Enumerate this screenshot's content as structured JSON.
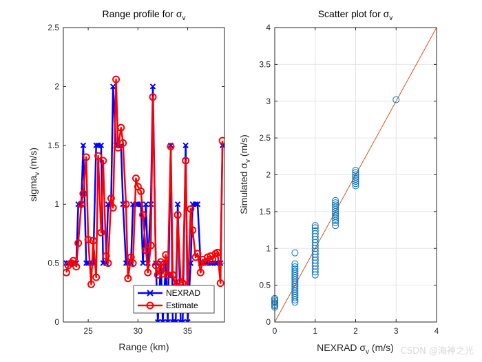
{
  "watermark": "CSDN @海神之光",
  "chart_data": [
    {
      "type": "line",
      "title": "Range profile for σ",
      "title_sub": "v",
      "xlabel": "Range (km)",
      "ylabel": "sigma",
      "ylabel_sub": "v",
      "ylabel_unit": " (m/s)",
      "xlim": [
        22.5,
        38.7
      ],
      "ylim": [
        0,
        2.5
      ],
      "xticks": [
        25,
        30,
        35
      ],
      "yticks": [
        0,
        0.5,
        1,
        1.5,
        2,
        2.5
      ],
      "grid": false,
      "legend_position": "bottom-right",
      "x": [
        22.8,
        23.0,
        23.3,
        23.5,
        23.8,
        24.0,
        24.3,
        24.5,
        24.8,
        25.0,
        25.3,
        25.5,
        25.8,
        26.0,
        26.3,
        26.5,
        26.8,
        27.0,
        27.3,
        27.5,
        27.8,
        28.0,
        28.3,
        28.5,
        28.8,
        29.0,
        29.3,
        29.5,
        29.8,
        30.0,
        30.3,
        30.5,
        30.8,
        31.0,
        31.3,
        31.5,
        31.8,
        32.0,
        32.3,
        32.5,
        32.8,
        33.0,
        33.3,
        33.5,
        33.8,
        34.0,
        34.3,
        34.5,
        34.8,
        35.0,
        35.3,
        35.5,
        35.8,
        36.0,
        36.3,
        36.5,
        36.8,
        37.0,
        37.3,
        37.5,
        37.8,
        38.0,
        38.3,
        38.5
      ],
      "series": [
        {
          "name": "NEXRAD",
          "color": "#0000ff",
          "marker": "x",
          "values": [
            0.5,
            0.5,
            0.5,
            0.5,
            0.5,
            1.0,
            1.0,
            1.5,
            0.5,
            0.5,
            0.5,
            0.5,
            1.5,
            1.5,
            1.5,
            0.5,
            0.5,
            1.0,
            1.0,
            2.0,
            1.5,
            1.5,
            1.5,
            1.0,
            0.5,
            0.5,
            0.5,
            1.0,
            1.0,
            1.0,
            1.0,
            0.5,
            1.0,
            0.5,
            1.0,
            2.0,
            0.5,
            0.0,
            0.5,
            0.0,
            0.5,
            0.0,
            1.5,
            0.0,
            0.0,
            1.0,
            0.0,
            0.0,
            1.5,
            0.0,
            0.5,
            1.0,
            1.0,
            1.0,
            0.5,
            0.5,
            0.5,
            0.5,
            0.5,
            0.5,
            0.5,
            0.5,
            0.5,
            1.5
          ]
        },
        {
          "name": "Estimate",
          "color": "#ff0000",
          "marker": "o",
          "values": [
            0.42,
            0.48,
            0.5,
            0.52,
            0.47,
            0.67,
            1.0,
            1.09,
            1.4,
            0.7,
            0.32,
            0.69,
            0.38,
            1.41,
            0.76,
            1.37,
            0.56,
            0.5,
            1.05,
            0.97,
            2.06,
            1.48,
            1.65,
            1.52,
            1.0,
            0.37,
            0.55,
            0.5,
            1.22,
            1.15,
            1.11,
            0.91,
            0.61,
            0.42,
            0.65,
            1.91,
            0.48,
            0.4,
            0.51,
            0.41,
            0.57,
            0.4,
            1.49,
            0.4,
            0.3,
            0.91,
            0.34,
            0.33,
            1.37,
            0.24,
            0.96,
            0.78,
            0.55,
            0.58,
            0.42,
            0.53,
            0.51,
            0.55,
            0.56,
            0.53,
            0.58,
            0.59,
            0.33,
            1.54
          ]
        }
      ]
    },
    {
      "type": "scatter",
      "title": "Scatter plot for σ",
      "title_sub": "v",
      "xlabel": "NEXRAD σ",
      "xlabel_sub": "v",
      "xlabel_unit": " (m/s)",
      "ylabel": "Simulated σ",
      "ylabel_sub": "v",
      "ylabel_unit": " (m/s)",
      "xlim": [
        0,
        4
      ],
      "ylim": [
        0,
        4
      ],
      "xticks": [
        0,
        1,
        2,
        3,
        4
      ],
      "yticks": [
        0,
        0.5,
        1,
        1.5,
        2,
        2.5,
        3,
        3.5,
        4
      ],
      "grid": true,
      "marker_color": "#0072bd",
      "reference_line": {
        "from": [
          0,
          0
        ],
        "to": [
          4,
          4
        ],
        "color": "#d95319"
      },
      "points": [
        [
          0,
          0.2
        ],
        [
          0,
          0.22
        ],
        [
          0,
          0.24
        ],
        [
          0,
          0.26
        ],
        [
          0,
          0.28
        ],
        [
          0,
          0.3
        ],
        [
          0,
          0.32
        ],
        [
          0.5,
          0.27
        ],
        [
          0.5,
          0.3
        ],
        [
          0.5,
          0.33
        ],
        [
          0.5,
          0.36
        ],
        [
          0.5,
          0.39
        ],
        [
          0.5,
          0.42
        ],
        [
          0.5,
          0.45
        ],
        [
          0.5,
          0.48
        ],
        [
          0.5,
          0.51
        ],
        [
          0.5,
          0.54
        ],
        [
          0.5,
          0.57
        ],
        [
          0.5,
          0.6
        ],
        [
          0.5,
          0.63
        ],
        [
          0.5,
          0.66
        ],
        [
          0.5,
          0.69
        ],
        [
          0.5,
          0.72
        ],
        [
          0.5,
          0.75
        ],
        [
          0.5,
          0.79
        ],
        [
          0.5,
          0.94
        ],
        [
          1,
          0.64
        ],
        [
          1,
          0.68
        ],
        [
          1,
          0.72
        ],
        [
          1,
          0.76
        ],
        [
          1,
          0.8
        ],
        [
          1,
          0.84
        ],
        [
          1,
          0.88
        ],
        [
          1,
          0.92
        ],
        [
          1,
          0.96
        ],
        [
          1,
          1.0
        ],
        [
          1,
          1.04
        ],
        [
          1,
          1.08
        ],
        [
          1,
          1.12
        ],
        [
          1,
          1.16
        ],
        [
          1,
          1.2
        ],
        [
          1,
          1.24
        ],
        [
          1,
          1.28
        ],
        [
          1,
          1.31
        ],
        [
          1.5,
          1.31
        ],
        [
          1.5,
          1.35
        ],
        [
          1.5,
          1.38
        ],
        [
          1.5,
          1.41
        ],
        [
          1.5,
          1.44
        ],
        [
          1.5,
          1.47
        ],
        [
          1.5,
          1.5
        ],
        [
          1.5,
          1.53
        ],
        [
          1.5,
          1.56
        ],
        [
          1.5,
          1.59
        ],
        [
          1.5,
          1.62
        ],
        [
          1.5,
          1.65
        ],
        [
          2,
          1.85
        ],
        [
          2,
          1.88
        ],
        [
          2,
          1.91
        ],
        [
          2,
          1.94
        ],
        [
          2,
          1.97
        ],
        [
          2,
          2.0
        ],
        [
          2,
          2.03
        ],
        [
          2,
          2.06
        ],
        [
          3,
          3.02
        ]
      ]
    }
  ]
}
